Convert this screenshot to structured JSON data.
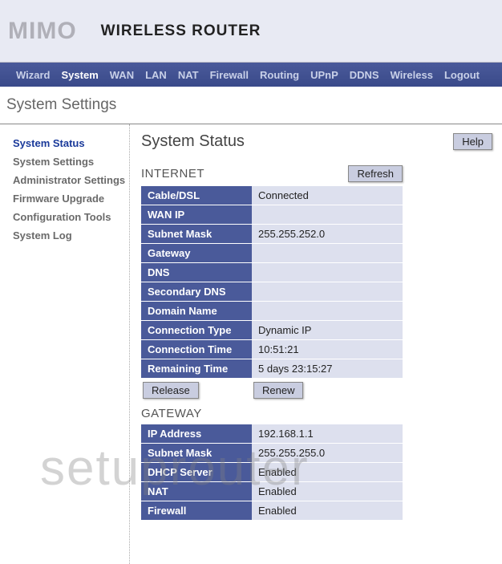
{
  "logo": "MIMO",
  "header_title": "WIRELESS ROUTER",
  "nav": [
    {
      "label": "Wizard",
      "active": false
    },
    {
      "label": "System",
      "active": true
    },
    {
      "label": "WAN",
      "active": false
    },
    {
      "label": "LAN",
      "active": false
    },
    {
      "label": "NAT",
      "active": false
    },
    {
      "label": "Firewall",
      "active": false
    },
    {
      "label": "Routing",
      "active": false
    },
    {
      "label": "UPnP",
      "active": false
    },
    {
      "label": "DDNS",
      "active": false
    },
    {
      "label": "Wireless",
      "active": false
    },
    {
      "label": "Logout",
      "active": false
    }
  ],
  "page_title": "System Settings",
  "sidebar": [
    {
      "label": "System Status",
      "active": true
    },
    {
      "label": "System Settings",
      "active": false
    },
    {
      "label": "Administrator Settings",
      "active": false
    },
    {
      "label": "Firmware Upgrade",
      "active": false
    },
    {
      "label": "Configuration Tools",
      "active": false
    },
    {
      "label": "System Log",
      "active": false
    }
  ],
  "main_title": "System Status",
  "buttons": {
    "help": "Help",
    "refresh": "Refresh",
    "release": "Release",
    "renew": "Renew"
  },
  "sections": {
    "internet": {
      "title": "INTERNET",
      "rows": [
        {
          "k": "Cable/DSL",
          "v": "Connected"
        },
        {
          "k": "WAN IP",
          "v": ""
        },
        {
          "k": "Subnet Mask",
          "v": "255.255.252.0"
        },
        {
          "k": "Gateway",
          "v": ""
        },
        {
          "k": "DNS",
          "v": ""
        },
        {
          "k": "Secondary DNS",
          "v": ""
        },
        {
          "k": "Domain Name",
          "v": ""
        },
        {
          "k": "Connection Type",
          "v": "Dynamic IP"
        },
        {
          "k": "Connection Time",
          "v": "10:51:21"
        },
        {
          "k": "Remaining Time",
          "v": "5 days 23:15:27"
        }
      ]
    },
    "gateway": {
      "title": "GATEWAY",
      "rows": [
        {
          "k": "IP Address",
          "v": "192.168.1.1"
        },
        {
          "k": "Subnet Mask",
          "v": "255.255.255.0"
        },
        {
          "k": "DHCP Server",
          "v": "Enabled"
        },
        {
          "k": "NAT",
          "v": "Enabled"
        },
        {
          "k": "Firewall",
          "v": "Enabled"
        }
      ]
    }
  },
  "watermark": "setuprouter",
  "colors": {
    "header_bg": "#e8eaf3",
    "nav_bg": "#3a4a8a",
    "nav_text": "#c8d0e8",
    "nav_active": "#ffffff",
    "sidebar_text": "#6a6a6a",
    "sidebar_active": "#1a3a9a",
    "table_key_bg": "#4a5a9a",
    "table_key_fg": "#ffffff",
    "table_val_bg": "#dde0ee",
    "btn_bg": "#c9cde0"
  }
}
